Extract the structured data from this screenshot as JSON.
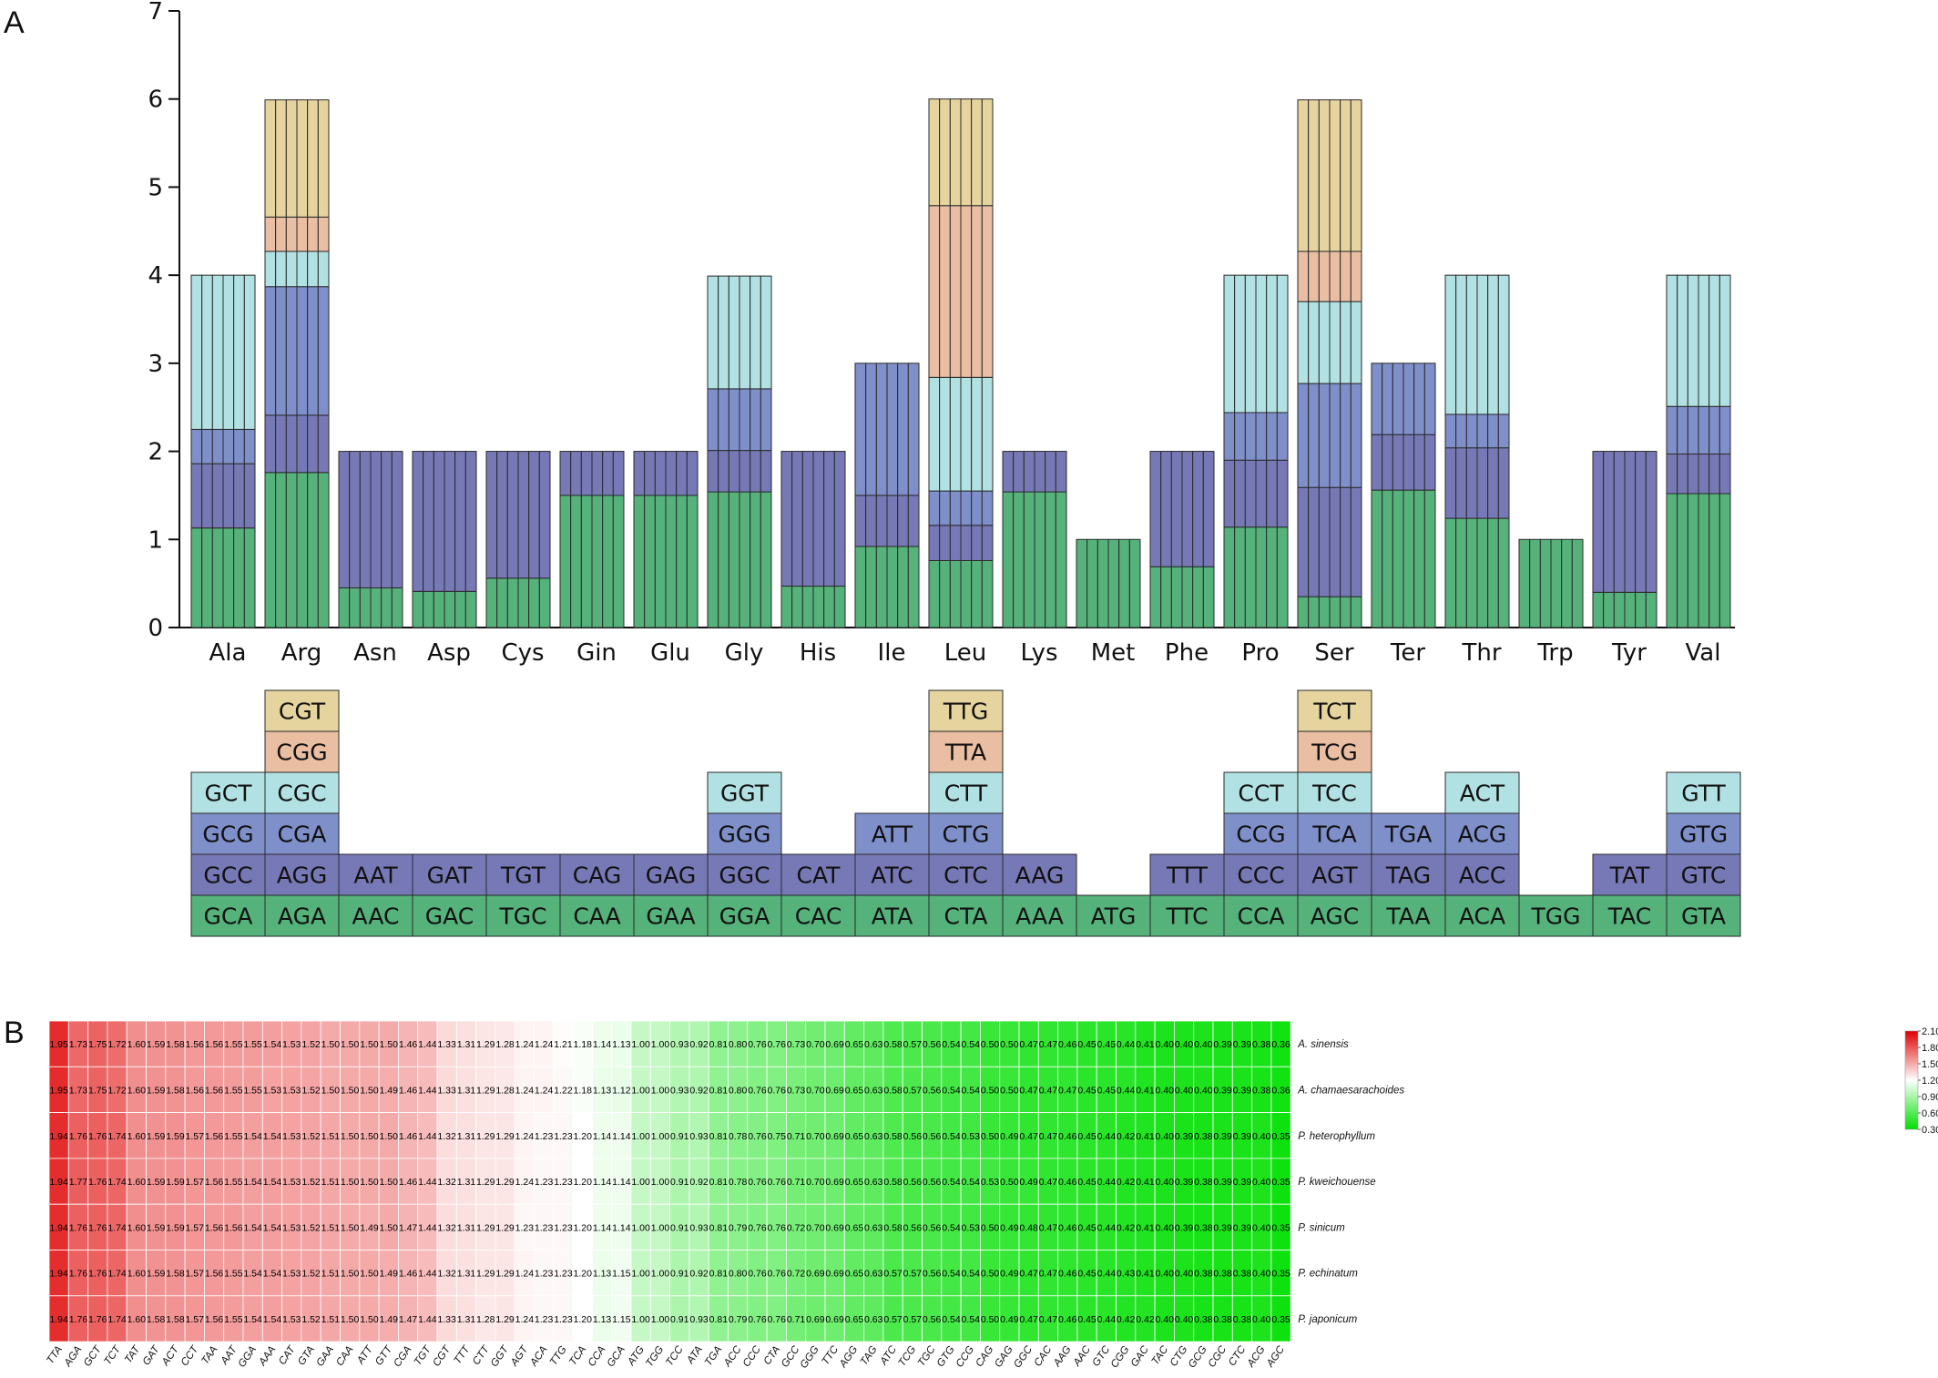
{
  "colors": {
    "green": "#55b27a",
    "purple": "#7779b6",
    "blue": "#7f8fca",
    "cyan": "#b2e1e3",
    "salmon": "#e9bea3",
    "tan": "#e6d49e",
    "heat_high": "#e00000",
    "heat_mid": "#ffffff",
    "heat_low": "#00e000"
  },
  "chart_data": [
    {
      "panel": "A",
      "type": "bar",
      "stacked": true,
      "ylim": [
        0,
        7
      ],
      "yticks": [
        "0",
        "1",
        "2",
        "3",
        "4",
        "5",
        "6",
        "7"
      ],
      "bars_per_group": 6,
      "layer_colors": [
        "green",
        "purple",
        "blue",
        "cyan",
        "salmon",
        "tan"
      ],
      "groups": [
        {
          "aa": "Ala",
          "codons": [
            "GCA",
            "GCC",
            "GCG",
            "GCT"
          ],
          "rscu": [
            1.13,
            0.73,
            0.39,
            1.75
          ]
        },
        {
          "aa": "Arg",
          "codons": [
            "AGA",
            "AGG",
            "CGA",
            "CGC",
            "CGG",
            "CGT"
          ],
          "rscu": [
            1.76,
            0.65,
            1.46,
            0.4,
            0.39,
            1.33
          ]
        },
        {
          "aa": "Asn",
          "codons": [
            "AAC",
            "AAT"
          ],
          "rscu": [
            0.45,
            1.55
          ]
        },
        {
          "aa": "Asp",
          "codons": [
            "GAC",
            "GAT"
          ],
          "rscu": [
            0.41,
            1.59
          ]
        },
        {
          "aa": "Cys",
          "codons": [
            "TGC",
            "TGT"
          ],
          "rscu": [
            0.56,
            1.44
          ]
        },
        {
          "aa": "Gin",
          "codons": [
            "CAA",
            "CAG"
          ],
          "rscu": [
            1.5,
            0.5
          ]
        },
        {
          "aa": "Glu",
          "codons": [
            "GAA",
            "GAG"
          ],
          "rscu": [
            1.5,
            0.5
          ]
        },
        {
          "aa": "Gly",
          "codons": [
            "GGA",
            "GGC",
            "GGG",
            "GGT"
          ],
          "rscu": [
            1.54,
            0.47,
            0.7,
            1.28
          ]
        },
        {
          "aa": "His",
          "codons": [
            "CAC",
            "CAT"
          ],
          "rscu": [
            0.47,
            1.53
          ]
        },
        {
          "aa": "Ile",
          "codons": [
            "ATA",
            "ATC",
            "ATT"
          ],
          "rscu": [
            0.92,
            0.58,
            1.5
          ]
        },
        {
          "aa": "Leu",
          "codons": [
            "CTA",
            "CTC",
            "CTG",
            "CTT",
            "TTA",
            "TTG"
          ],
          "rscu": [
            0.76,
            0.4,
            0.39,
            1.29,
            1.95,
            1.21
          ]
        },
        {
          "aa": "Lys",
          "codons": [
            "AAA",
            "AAG"
          ],
          "rscu": [
            1.54,
            0.46
          ]
        },
        {
          "aa": "Met",
          "codons": [
            "ATG"
          ],
          "rscu": [
            1.0
          ]
        },
        {
          "aa": "Phe",
          "codons": [
            "TTC",
            "TTT"
          ],
          "rscu": [
            0.69,
            1.31
          ]
        },
        {
          "aa": "Pro",
          "codons": [
            "CCA",
            "CCC",
            "CCG",
            "CCT"
          ],
          "rscu": [
            1.14,
            0.76,
            0.54,
            1.56
          ]
        },
        {
          "aa": "Ser",
          "codons": [
            "AGC",
            "AGT",
            "TCA",
            "TCC",
            "TCG",
            "TCT"
          ],
          "rscu": [
            0.35,
            1.24,
            1.18,
            0.93,
            0.57,
            1.72
          ]
        },
        {
          "aa": "Ter",
          "codons": [
            "TAA",
            "TAG",
            "TGA"
          ],
          "rscu": [
            1.56,
            0.63,
            0.81
          ]
        },
        {
          "aa": "Thr",
          "codons": [
            "ACA",
            "ACC",
            "ACG",
            "ACT"
          ],
          "rscu": [
            1.24,
            0.8,
            0.38,
            1.58
          ]
        },
        {
          "aa": "Trp",
          "codons": [
            "TGG"
          ],
          "rscu": [
            1.0
          ]
        },
        {
          "aa": "Tyr",
          "codons": [
            "TAC",
            "TAT"
          ],
          "rscu": [
            0.4,
            1.6
          ]
        },
        {
          "aa": "Val",
          "codons": [
            "GTA",
            "GTC",
            "GTG",
            "GTT"
          ],
          "rscu": [
            1.52,
            0.45,
            0.54,
            1.49
          ]
        }
      ]
    },
    {
      "panel": "B",
      "type": "heatmap",
      "color_scale": {
        "ticks": [
          "2.10",
          "1.80",
          "1.50",
          "1.20",
          "0.90",
          "0.60",
          "0.30"
        ],
        "min": 0.3,
        "mid": 1.2,
        "max": 2.1
      },
      "species": [
        "A. sinensis",
        "A. chamaesarachoides",
        "P. heterophyllum",
        "P. kweichouense",
        "P. sinicum",
        "P. echinatum",
        "P. japonicum"
      ],
      "codons": [
        "TTA",
        "AGA",
        "GCT",
        "TCT",
        "TAT",
        "GAT",
        "ACT",
        "CCT",
        "TAA",
        "AAT",
        "GGA",
        "AAA",
        "CAT",
        "GTA",
        "GAA",
        "CAA",
        "ATT",
        "GTT",
        "CGA",
        "TGT",
        "CGT",
        "TTT",
        "CTT",
        "GGT",
        "AGT",
        "ACA",
        "TTG",
        "TCA",
        "CCA",
        "GCA",
        "ATG",
        "TGG",
        "TCC",
        "ATA",
        "TGA",
        "ACC",
        "CCC",
        "CTA",
        "GCC",
        "GGG",
        "TTC",
        "AGG",
        "TAG",
        "ATC",
        "TCG",
        "TGC",
        "GTG",
        "CCG",
        "CAG",
        "GAG",
        "GGC",
        "CAC",
        "AAG",
        "AAC",
        "GTC",
        "CGG",
        "GAC",
        "TAC",
        "CTG",
        "GCG",
        "CGC",
        "CTC",
        "ACG",
        "AGC"
      ],
      "values": [
        [
          "1.95",
          "1.73",
          "1.75",
          "1.72",
          "1.60",
          "1.59",
          "1.58",
          "1.56",
          "1.56",
          "1.55",
          "1.55",
          "1.54",
          "1.53",
          "1.52",
          "1.50",
          "1.50",
          "1.50",
          "1.50",
          "1.46",
          "1.44",
          "1.33",
          "1.31",
          "1.29",
          "1.28",
          "1.24",
          "1.24",
          "1.21",
          "1.18",
          "1.14",
          "1.13",
          "1.00",
          "1.00",
          "0.93",
          "0.92",
          "0.81",
          "0.80",
          "0.76",
          "0.76",
          "0.73",
          "0.70",
          "0.69",
          "0.65",
          "0.63",
          "0.58",
          "0.57",
          "0.56",
          "0.54",
          "0.54",
          "0.50",
          "0.50",
          "0.47",
          "0.47",
          "0.46",
          "0.45",
          "0.45",
          "0.44",
          "0.41",
          "0.40",
          "0.40",
          "0.40",
          "0.39",
          "0.39",
          "0.38",
          "0.36"
        ],
        [
          "1.95",
          "1.73",
          "1.75",
          "1.72",
          "1.60",
          "1.59",
          "1.58",
          "1.56",
          "1.56",
          "1.55",
          "1.55",
          "1.53",
          "1.53",
          "1.52",
          "1.50",
          "1.50",
          "1.50",
          "1.49",
          "1.46",
          "1.44",
          "1.33",
          "1.31",
          "1.29",
          "1.28",
          "1.24",
          "1.24",
          "1.22",
          "1.18",
          "1.13",
          "1.12",
          "1.00",
          "1.00",
          "0.93",
          "0.92",
          "0.81",
          "0.80",
          "0.76",
          "0.76",
          "0.73",
          "0.70",
          "0.69",
          "0.65",
          "0.63",
          "0.58",
          "0.57",
          "0.56",
          "0.54",
          "0.54",
          "0.50",
          "0.50",
          "0.47",
          "0.47",
          "0.47",
          "0.45",
          "0.45",
          "0.44",
          "0.41",
          "0.40",
          "0.40",
          "0.40",
          "0.39",
          "0.39",
          "0.38",
          "0.36"
        ],
        [
          "1.94",
          "1.76",
          "1.76",
          "1.74",
          "1.60",
          "1.59",
          "1.59",
          "1.57",
          "1.56",
          "1.55",
          "1.54",
          "1.54",
          "1.53",
          "1.52",
          "1.51",
          "1.50",
          "1.50",
          "1.50",
          "1.46",
          "1.44",
          "1.32",
          "1.31",
          "1.29",
          "1.29",
          "1.24",
          "1.23",
          "1.23",
          "1.20",
          "1.14",
          "1.14",
          "1.00",
          "1.00",
          "0.91",
          "0.93",
          "0.81",
          "0.78",
          "0.76",
          "0.75",
          "0.71",
          "0.70",
          "0.69",
          "0.65",
          "0.63",
          "0.58",
          "0.56",
          "0.56",
          "0.54",
          "0.53",
          "0.50",
          "0.49",
          "0.47",
          "0.47",
          "0.46",
          "0.45",
          "0.44",
          "0.42",
          "0.41",
          "0.40",
          "0.39",
          "0.38",
          "0.39",
          "0.39",
          "0.40",
          "0.35"
        ],
        [
          "1.94",
          "1.77",
          "1.76",
          "1.74",
          "1.60",
          "1.59",
          "1.59",
          "1.57",
          "1.56",
          "1.55",
          "1.54",
          "1.54",
          "1.53",
          "1.52",
          "1.51",
          "1.50",
          "1.50",
          "1.50",
          "1.46",
          "1.44",
          "1.32",
          "1.31",
          "1.29",
          "1.29",
          "1.24",
          "1.23",
          "1.23",
          "1.20",
          "1.14",
          "1.14",
          "1.00",
          "1.00",
          "0.91",
          "0.92",
          "0.81",
          "0.78",
          "0.76",
          "0.76",
          "0.71",
          "0.70",
          "0.69",
          "0.65",
          "0.63",
          "0.58",
          "0.56",
          "0.56",
          "0.54",
          "0.54",
          "0.53",
          "0.50",
          "0.49",
          "0.47",
          "0.46",
          "0.45",
          "0.44",
          "0.42",
          "0.41",
          "0.40",
          "0.39",
          "0.38",
          "0.39",
          "0.39",
          "0.40",
          "0.35"
        ],
        [
          "1.94",
          "1.76",
          "1.76",
          "1.74",
          "1.60",
          "1.59",
          "1.59",
          "1.57",
          "1.56",
          "1.56",
          "1.54",
          "1.54",
          "1.53",
          "1.52",
          "1.51",
          "1.50",
          "1.49",
          "1.50",
          "1.47",
          "1.44",
          "1.32",
          "1.31",
          "1.29",
          "1.29",
          "1.23",
          "1.23",
          "1.23",
          "1.20",
          "1.14",
          "1.14",
          "1.00",
          "1.00",
          "0.91",
          "0.93",
          "0.81",
          "0.79",
          "0.76",
          "0.76",
          "0.72",
          "0.70",
          "0.69",
          "0.65",
          "0.63",
          "0.58",
          "0.56",
          "0.56",
          "0.54",
          "0.53",
          "0.50",
          "0.49",
          "0.48",
          "0.47",
          "0.46",
          "0.45",
          "0.44",
          "0.42",
          "0.41",
          "0.40",
          "0.39",
          "0.38",
          "0.39",
          "0.39",
          "0.40",
          "0.35"
        ],
        [
          "1.94",
          "1.76",
          "1.76",
          "1.74",
          "1.60",
          "1.59",
          "1.58",
          "1.57",
          "1.56",
          "1.55",
          "1.54",
          "1.54",
          "1.53",
          "1.52",
          "1.51",
          "1.50",
          "1.50",
          "1.49",
          "1.46",
          "1.44",
          "1.32",
          "1.31",
          "1.29",
          "1.29",
          "1.24",
          "1.23",
          "1.23",
          "1.20",
          "1.13",
          "1.15",
          "1.00",
          "1.00",
          "0.91",
          "0.92",
          "0.81",
          "0.80",
          "0.76",
          "0.76",
          "0.72",
          "0.69",
          "0.69",
          "0.65",
          "0.63",
          "0.57",
          "0.57",
          "0.56",
          "0.54",
          "0.54",
          "0.50",
          "0.49",
          "0.47",
          "0.47",
          "0.46",
          "0.45",
          "0.44",
          "0.43",
          "0.41",
          "0.40",
          "0.40",
          "0.38",
          "0.38",
          "0.38",
          "0.40",
          "0.35"
        ],
        [
          "1.94",
          "1.76",
          "1.76",
          "1.74",
          "1.60",
          "1.58",
          "1.58",
          "1.57",
          "1.56",
          "1.55",
          "1.54",
          "1.54",
          "1.53",
          "1.52",
          "1.51",
          "1.50",
          "1.50",
          "1.49",
          "1.47",
          "1.44",
          "1.33",
          "1.31",
          "1.28",
          "1.29",
          "1.24",
          "1.23",
          "1.23",
          "1.20",
          "1.13",
          "1.15",
          "1.00",
          "1.00",
          "0.91",
          "0.93",
          "0.81",
          "0.79",
          "0.76",
          "0.76",
          "0.71",
          "0.69",
          "0.69",
          "0.65",
          "0.63",
          "0.57",
          "0.57",
          "0.56",
          "0.54",
          "0.54",
          "0.50",
          "0.49",
          "0.47",
          "0.47",
          "0.46",
          "0.45",
          "0.44",
          "0.42",
          "0.42",
          "0.40",
          "0.40",
          "0.38",
          "0.38",
          "0.38",
          "0.40",
          "0.35"
        ]
      ]
    }
  ],
  "labels": {
    "panel_a": "A",
    "panel_b": "B"
  }
}
